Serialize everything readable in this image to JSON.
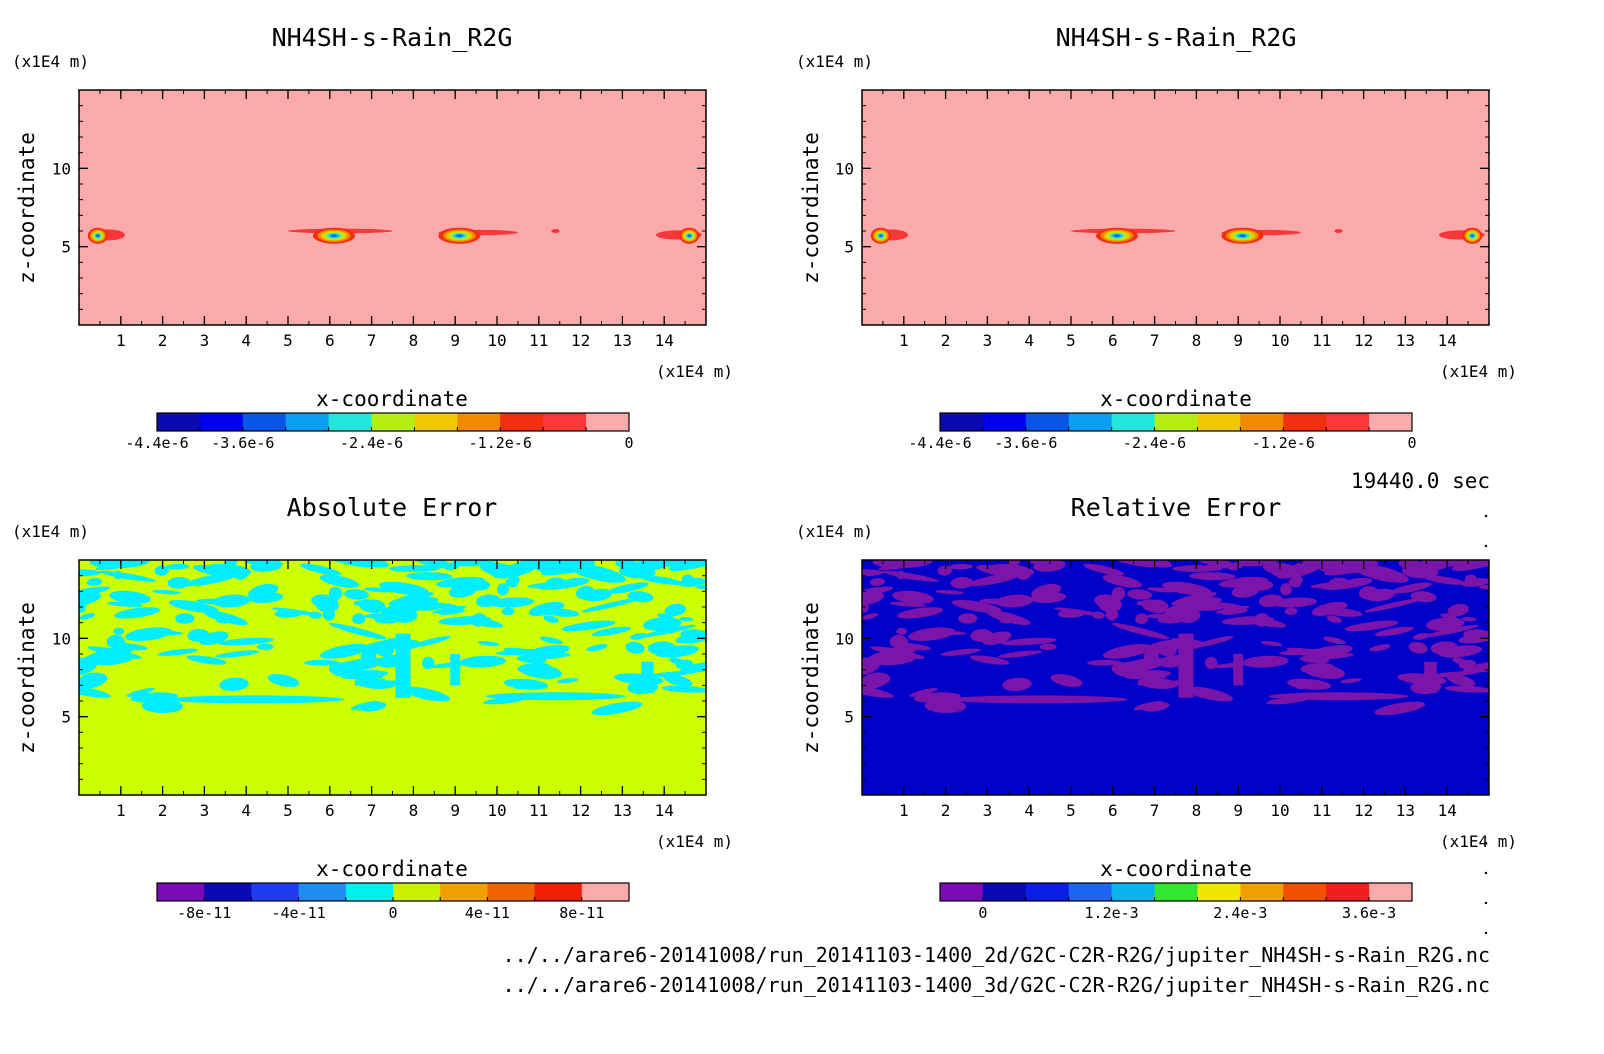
{
  "time_label": "19440.0 sec",
  "files": [
    "../../arare6-20141008/run_20141103-1400_2d/G2C-C2R-R2G/jupiter_NH4SH-s-Rain_R2G.nc",
    "../../arare6-20141008/run_20141103-1400_3d/G2C-C2R-R2G/jupiter_NH4SH-s-Rain_R2G.nc"
  ],
  "chart_data": [
    {
      "type": "heatmap",
      "title": "NH4SH-s-Rain_R2G",
      "xlabel": "x-coordinate",
      "ylabel": "z-coordinate",
      "x_unit": "(x1E4 m)",
      "y_unit": "(x1E4 m)",
      "xlim": [
        0,
        15
      ],
      "ylim": [
        0,
        15
      ],
      "x_ticks": [
        1,
        2,
        3,
        4,
        5,
        6,
        7,
        8,
        9,
        10,
        11,
        12,
        13,
        14
      ],
      "y_ticks": [
        5,
        10
      ],
      "colorbar": {
        "colors": [
          "#0a0ab0",
          "#0000ee",
          "#0a55e6",
          "#0a9ff0",
          "#22e6dc",
          "#b4ee10",
          "#f0c800",
          "#f08a00",
          "#f03010",
          "#f83838",
          "#faaaaa"
        ],
        "tick_labels": [
          "-4.4e-6",
          "-3.6e-6",
          "-2.4e-6",
          "-1.2e-6",
          "0"
        ],
        "tick_values": [
          -4.4e-06,
          -3.6e-06,
          -2.4e-06,
          -1.2e-06,
          0
        ],
        "range": [
          -4.4e-06,
          0
        ]
      },
      "background_value": 0,
      "features": [
        {
          "x": 0.45,
          "z": 5.7,
          "min": -4.4e-06
        },
        {
          "x": 6.1,
          "z": 5.7,
          "min": -4.4e-06
        },
        {
          "x": 9.1,
          "z": 5.7,
          "min": -4.4e-06
        },
        {
          "x": 14.6,
          "z": 5.7,
          "min": -4.4e-06
        }
      ]
    },
    {
      "type": "heatmap",
      "title": "NH4SH-s-Rain_R2G",
      "xlabel": "x-coordinate",
      "ylabel": "z-coordinate",
      "x_unit": "(x1E4 m)",
      "y_unit": "(x1E4 m)",
      "xlim": [
        0,
        15
      ],
      "ylim": [
        0,
        15
      ],
      "x_ticks": [
        1,
        2,
        3,
        4,
        5,
        6,
        7,
        8,
        9,
        10,
        11,
        12,
        13,
        14
      ],
      "y_ticks": [
        5,
        10
      ],
      "colorbar": {
        "colors": [
          "#0a0ab0",
          "#0000ee",
          "#0a55e6",
          "#0a9ff0",
          "#22e6dc",
          "#b4ee10",
          "#f0c800",
          "#f08a00",
          "#f03010",
          "#f83838",
          "#faaaaa"
        ],
        "tick_labels": [
          "-4.4e-6",
          "-3.6e-6",
          "-2.4e-6",
          "-1.2e-6",
          "0"
        ],
        "tick_values": [
          -4.4e-06,
          -3.6e-06,
          -2.4e-06,
          -1.2e-06,
          0
        ],
        "range": [
          -4.4e-06,
          0
        ]
      },
      "background_value": 0,
      "features": [
        {
          "x": 0.45,
          "z": 5.7,
          "min": -4.4e-06
        },
        {
          "x": 6.1,
          "z": 5.7,
          "min": -4.4e-06
        },
        {
          "x": 9.1,
          "z": 5.7,
          "min": -4.4e-06
        },
        {
          "x": 14.6,
          "z": 5.7,
          "min": -4.4e-06
        }
      ]
    },
    {
      "type": "heatmap",
      "title": "Absolute Error",
      "xlabel": "x-coordinate",
      "ylabel": "z-coordinate",
      "x_unit": "(x1E4 m)",
      "y_unit": "(x1E4 m)",
      "xlim": [
        0,
        15
      ],
      "ylim": [
        0,
        15
      ],
      "x_ticks": [
        1,
        2,
        3,
        4,
        5,
        6,
        7,
        8,
        9,
        10,
        11,
        12,
        13,
        14
      ],
      "y_ticks": [
        5,
        10
      ],
      "colorbar": {
        "colors": [
          "#7a0ab4",
          "#0a0ab4",
          "#1e3cf0",
          "#1e8cf0",
          "#00f0f0",
          "#c8f000",
          "#f0a000",
          "#f06400",
          "#f01e00",
          "#faaaaa"
        ],
        "tick_labels": [
          "-8e-11",
          "-4e-11",
          "0",
          "4e-11",
          "8e-11"
        ],
        "tick_values": [
          -8e-11,
          -4e-11,
          0,
          4e-11,
          8e-11
        ],
        "range": [
          -1e-10,
          1e-10
        ]
      },
      "background_color": "#ccff00",
      "noise_color": "#00eeff",
      "noise_zmin": 5.3
    },
    {
      "type": "heatmap",
      "title": "Relative Error",
      "xlabel": "x-coordinate",
      "ylabel": "z-coordinate",
      "x_unit": "(x1E4 m)",
      "y_unit": "(x1E4 m)",
      "xlim": [
        0,
        15
      ],
      "ylim": [
        0,
        15
      ],
      "x_ticks": [
        1,
        2,
        3,
        4,
        5,
        6,
        7,
        8,
        9,
        10,
        11,
        12,
        13,
        14
      ],
      "y_ticks": [
        5,
        10
      ],
      "colorbar": {
        "colors": [
          "#7a0ab4",
          "#0a0ab4",
          "#0a1ee6",
          "#1e64f0",
          "#0ab4f0",
          "#32e632",
          "#f0e600",
          "#f0a000",
          "#f05000",
          "#f01e1e",
          "#faaaaa"
        ],
        "tick_labels": [
          "0",
          "1.2e-3",
          "2.4e-3",
          "3.6e-3"
        ],
        "tick_values": [
          0,
          0.0012,
          0.0024,
          0.0036
        ],
        "range": [
          -0.0004,
          0.004
        ]
      },
      "background_color": "#0000c8",
      "noise_color": "#7a14aa",
      "noise_zmin": 5.3
    }
  ]
}
